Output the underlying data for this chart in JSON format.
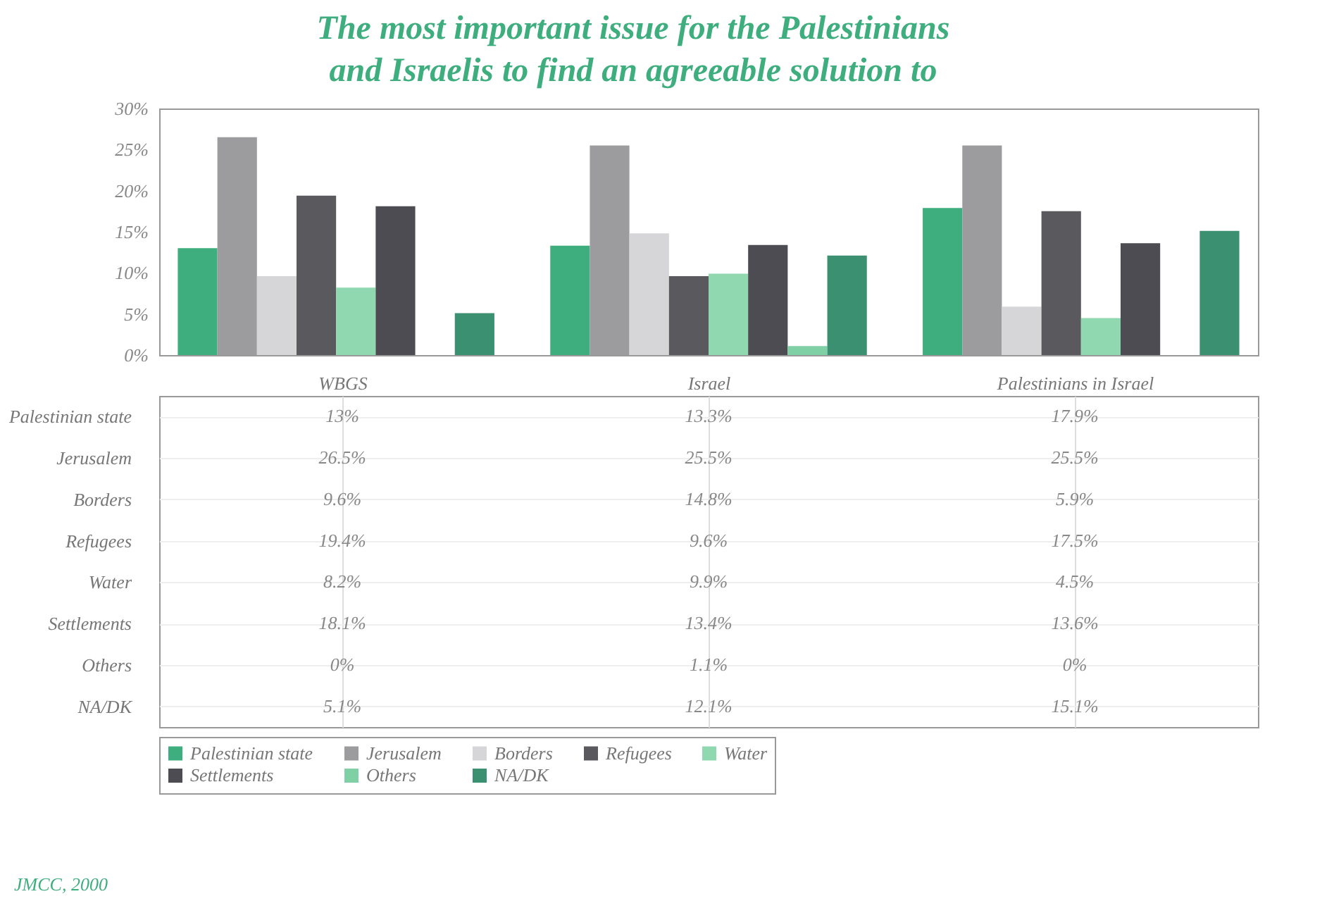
{
  "chart_data": {
    "type": "bar",
    "title": "The most important issue for the Palestinians and Israelis to find an agreeable solution to",
    "categories": [
      "WBGS",
      "Israel",
      "Palestinians in Israel"
    ],
    "series": [
      {
        "name": "Palestinian state",
        "color": "#3fae7e",
        "values": [
          13,
          13.3,
          17.9
        ],
        "value_labels": [
          "13%",
          "13.3%",
          "17.9%"
        ]
      },
      {
        "name": "Jerusalem",
        "color": "#9c9c9e",
        "values": [
          26.5,
          25.5,
          25.5
        ],
        "value_labels": [
          "26.5%",
          "25.5%",
          "25.5%"
        ]
      },
      {
        "name": "Borders",
        "color": "#d6d6d8",
        "values": [
          9.6,
          14.8,
          5.9
        ],
        "value_labels": [
          "9.6%",
          "14.8%",
          "5.9%"
        ]
      },
      {
        "name": "Refugees",
        "color": "#5a5a5e",
        "values": [
          19.4,
          9.6,
          17.5
        ],
        "value_labels": [
          "19.4%",
          "9.6%",
          "17.5%"
        ]
      },
      {
        "name": "Water",
        "color": "#8fd8b0",
        "values": [
          8.2,
          9.9,
          4.5
        ],
        "value_labels": [
          "8.2%",
          "9.9%",
          "4.5%"
        ]
      },
      {
        "name": "Settlements",
        "color": "#4c4c52",
        "values": [
          18.1,
          13.4,
          13.6
        ],
        "value_labels": [
          "18.1%",
          "13.4%",
          "13.6%"
        ]
      },
      {
        "name": "Others",
        "color": "#7fd0a4",
        "values": [
          0,
          1.1,
          0
        ],
        "value_labels": [
          "0%",
          "1.1%",
          "0%"
        ]
      },
      {
        "name": "NA/DK",
        "color": "#3a9070",
        "values": [
          5.1,
          12.1,
          15.1
        ],
        "value_labels": [
          "5.1%",
          "12.1%",
          "15.1%"
        ]
      }
    ],
    "ylim": [
      0,
      30
    ],
    "yticks": [
      {
        "value": 0,
        "label": "0%"
      },
      {
        "value": 5,
        "label": "5%"
      },
      {
        "value": 10,
        "label": "10%"
      },
      {
        "value": 15,
        "label": "15%"
      },
      {
        "value": 20,
        "label": "20%"
      },
      {
        "value": 25,
        "label": "25%"
      },
      {
        "value": 30,
        "label": "30%"
      }
    ],
    "grid": false,
    "legend": "bottom",
    "annotations": [
      "JMCC, 2000"
    ]
  }
}
